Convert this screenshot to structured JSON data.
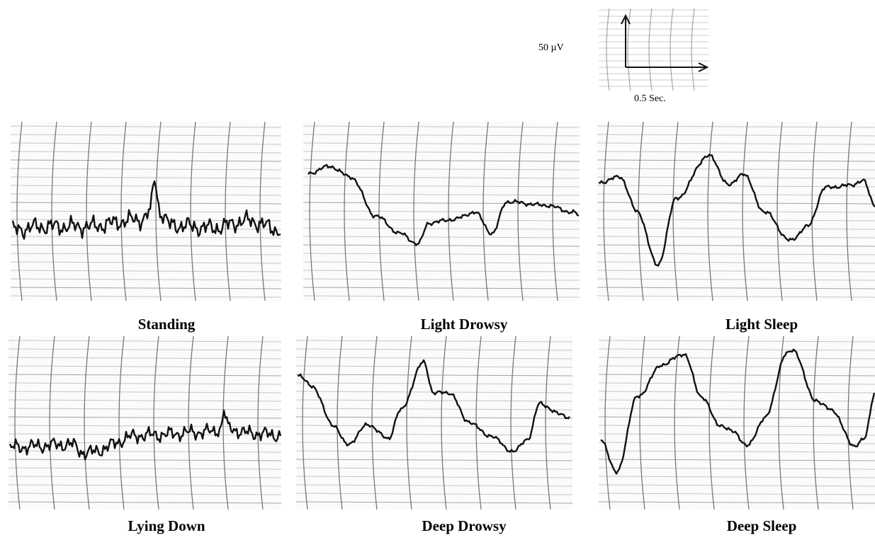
{
  "scale": {
    "amplitude": "50 µV",
    "time": "0.5 Sec."
  },
  "panels": [
    {
      "label": "Standing"
    },
    {
      "label": "Light Drowsy"
    },
    {
      "label": "Light Sleep"
    },
    {
      "label": "Lying Down"
    },
    {
      "label": "Deep Drowsy"
    },
    {
      "label": "Deep Sleep"
    }
  ]
}
